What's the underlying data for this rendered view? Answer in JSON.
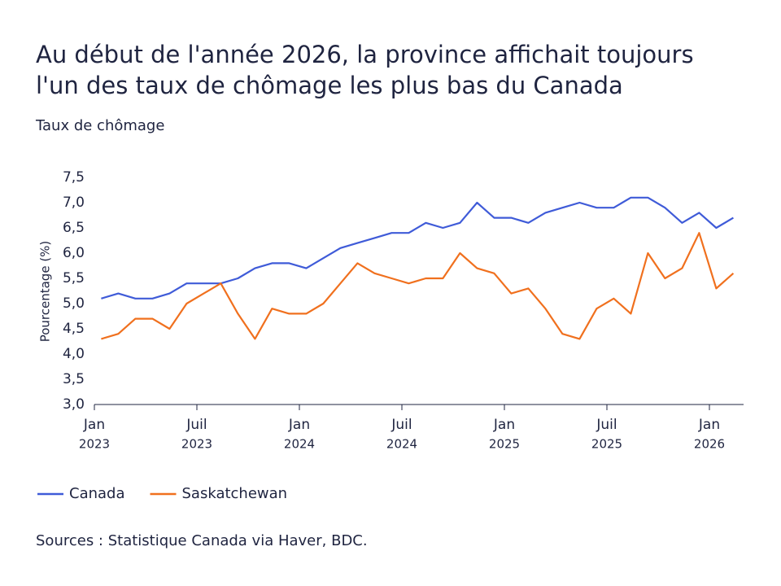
{
  "chart_data": {
    "type": "line",
    "title": [
      "Au début de l'année 2026, la province affichait toujours",
      "l'un des taux de chômage les plus bas du Canada"
    ],
    "subtitle": "Taux de chômage",
    "y_label": "Pourcentage (%)",
    "source": "Sources : Statistique Canada via Haver, BDC.",
    "x": [
      "2023-01",
      "2023-02",
      "2023-03",
      "2023-04",
      "2023-05",
      "2023-06",
      "2023-07",
      "2023-08",
      "2023-09",
      "2023-10",
      "2023-11",
      "2023-12",
      "2024-01",
      "2024-02",
      "2024-03",
      "2024-04",
      "2024-05",
      "2024-06",
      "2024-07",
      "2024-08",
      "2024-09",
      "2024-10",
      "2024-11",
      "2024-12",
      "2025-01",
      "2025-02",
      "2025-03",
      "2025-04",
      "2025-05",
      "2025-06",
      "2025-07",
      "2025-08",
      "2025-09",
      "2025-10",
      "2025-11",
      "2025-12",
      "2026-01",
      "2026-02"
    ],
    "series": [
      {
        "name": "Canada",
        "color": "#3f5bd8",
        "values": [
          5.1,
          5.2,
          5.1,
          5.1,
          5.2,
          5.4,
          5.4,
          5.4,
          5.5,
          5.7,
          5.8,
          5.8,
          5.7,
          5.9,
          6.1,
          6.2,
          6.3,
          6.4,
          6.4,
          6.6,
          6.5,
          6.6,
          7.0,
          6.7,
          6.7,
          6.6,
          6.8,
          6.9,
          7.0,
          6.9,
          6.9,
          7.1,
          7.1,
          6.9,
          6.6,
          6.8,
          6.5,
          6.7
        ]
      },
      {
        "name": "Saskatchewan",
        "color": "#f0701e",
        "values": [
          4.3,
          4.4,
          4.7,
          4.7,
          4.5,
          5.0,
          5.2,
          5.4,
          4.8,
          4.3,
          4.9,
          4.8,
          4.8,
          5.0,
          5.4,
          5.8,
          5.6,
          5.5,
          5.4,
          5.5,
          5.5,
          6.0,
          5.7,
          5.6,
          5.2,
          5.3,
          4.9,
          4.4,
          4.3,
          4.9,
          5.1,
          4.8,
          6.0,
          5.5,
          5.7,
          6.4,
          5.3,
          5.6
        ]
      }
    ],
    "ylim": [
      3,
      7.5
    ],
    "yticks": [
      {
        "value": 3,
        "label": "3,0"
      },
      {
        "value": 3.5,
        "label": "3,5"
      },
      {
        "value": 4,
        "label": "4,0"
      },
      {
        "value": 4.5,
        "label": "4,5"
      },
      {
        "value": 5,
        "label": "5,0"
      },
      {
        "value": 5.5,
        "label": "5,5"
      },
      {
        "value": 6,
        "label": "6,0"
      },
      {
        "value": 6.5,
        "label": "6,5"
      },
      {
        "value": 7,
        "label": "7,0"
      },
      {
        "value": 7.5,
        "label": "7,5"
      }
    ],
    "xticks": [
      {
        "value": "2023-01",
        "label": "Jan",
        "year": "2023"
      },
      {
        "value": "2023-07",
        "label": "Juil",
        "year": "2023"
      },
      {
        "value": "2024-01",
        "label": "Jan",
        "year": "2024"
      },
      {
        "value": "2024-07",
        "label": "Juil",
        "year": "2024"
      },
      {
        "value": "2025-01",
        "label": "Jan",
        "year": "2025"
      },
      {
        "value": "2025-07",
        "label": "Juil",
        "year": "2025"
      },
      {
        "value": "2026-01",
        "label": "Jan",
        "year": "2026"
      }
    ],
    "legend": "bottom-left"
  }
}
